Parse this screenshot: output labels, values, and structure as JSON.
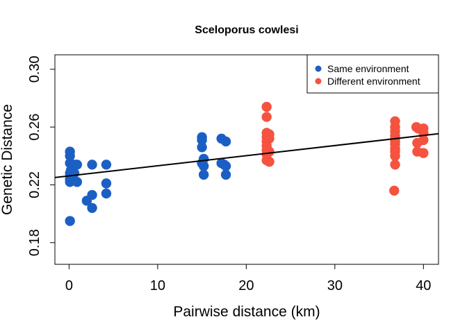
{
  "chart_data": {
    "type": "scatter",
    "title": "Sceloporus cowlesi",
    "xlabel": "Pairwise distance (km)",
    "ylabel": "Genetic Distance",
    "xlim": [
      -1.6,
      41.7
    ],
    "ylim": [
      0.165,
      0.31
    ],
    "x_ticks": [
      0,
      10,
      20,
      30,
      40
    ],
    "x_tick_labels": [
      "0",
      "10",
      "20",
      "30",
      "40"
    ],
    "y_ticks": [
      0.18,
      0.22,
      0.26,
      0.3
    ],
    "y_tick_labels": [
      "0.18",
      "0.22",
      "0.26",
      "0.30"
    ],
    "grid": false,
    "legend_position": "top-right",
    "series": [
      {
        "name": "Same environment",
        "color": "#1c5fc4",
        "points": [
          [
            0.1,
            0.243
          ],
          [
            0.1,
            0.24
          ],
          [
            0.1,
            0.235
          ],
          [
            0.2,
            0.23
          ],
          [
            0.1,
            0.228
          ],
          [
            0.2,
            0.226
          ],
          [
            0.1,
            0.224
          ],
          [
            0.1,
            0.222
          ],
          [
            0.6,
            0.234
          ],
          [
            0.6,
            0.228
          ],
          [
            0.9,
            0.234
          ],
          [
            0.9,
            0.222
          ],
          [
            0.1,
            0.195
          ],
          [
            2.0,
            0.209
          ],
          [
            2.6,
            0.234
          ],
          [
            2.6,
            0.213
          ],
          [
            2.6,
            0.204
          ],
          [
            4.2,
            0.234
          ],
          [
            4.2,
            0.221
          ],
          [
            4.2,
            0.214
          ],
          [
            15.0,
            0.253
          ],
          [
            15.0,
            0.251
          ],
          [
            15.0,
            0.246
          ],
          [
            15.2,
            0.238
          ],
          [
            15.0,
            0.235
          ],
          [
            15.2,
            0.233
          ],
          [
            15.2,
            0.227
          ],
          [
            17.2,
            0.252
          ],
          [
            17.7,
            0.25
          ],
          [
            17.2,
            0.235
          ],
          [
            17.5,
            0.234
          ],
          [
            17.7,
            0.233
          ],
          [
            17.7,
            0.227
          ]
        ]
      },
      {
        "name": "Different environment",
        "color": "#f5523f",
        "points": [
          [
            22.3,
            0.274
          ],
          [
            22.3,
            0.267
          ],
          [
            22.3,
            0.256
          ],
          [
            22.6,
            0.255
          ],
          [
            22.3,
            0.253
          ],
          [
            22.6,
            0.252
          ],
          [
            22.3,
            0.25
          ],
          [
            22.3,
            0.247
          ],
          [
            22.3,
            0.244
          ],
          [
            22.6,
            0.243
          ],
          [
            22.3,
            0.241
          ],
          [
            22.3,
            0.237
          ],
          [
            22.6,
            0.236
          ],
          [
            36.8,
            0.264
          ],
          [
            36.8,
            0.26
          ],
          [
            36.8,
            0.257
          ],
          [
            36.8,
            0.254
          ],
          [
            36.8,
            0.252
          ],
          [
            36.8,
            0.25
          ],
          [
            36.8,
            0.248
          ],
          [
            36.8,
            0.245
          ],
          [
            36.8,
            0.243
          ],
          [
            36.8,
            0.24
          ],
          [
            36.8,
            0.234
          ],
          [
            36.7,
            0.216
          ],
          [
            39.2,
            0.26
          ],
          [
            39.4,
            0.259
          ],
          [
            40.0,
            0.259
          ],
          [
            40.0,
            0.256
          ],
          [
            39.3,
            0.249
          ],
          [
            40.0,
            0.251
          ],
          [
            39.3,
            0.243
          ],
          [
            40.0,
            0.242
          ]
        ]
      }
    ],
    "trend_line": {
      "intercept": 0.2262,
      "slope": 0.0007
    }
  }
}
